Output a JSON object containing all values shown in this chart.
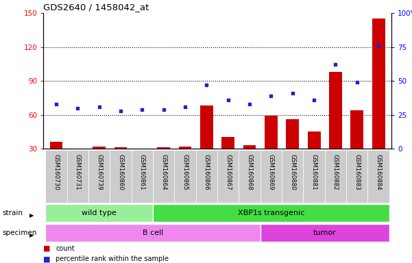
{
  "title": "GDS2640 / 1458042_at",
  "samples": [
    "GSM160730",
    "GSM160731",
    "GSM160739",
    "GSM160860",
    "GSM160861",
    "GSM160864",
    "GSM160865",
    "GSM160866",
    "GSM160867",
    "GSM160868",
    "GSM160869",
    "GSM160880",
    "GSM160881",
    "GSM160882",
    "GSM160883",
    "GSM160884"
  ],
  "counts": [
    36,
    29,
    32,
    31,
    30,
    31,
    32,
    68,
    40,
    33,
    59,
    56,
    45,
    98,
    64,
    145
  ],
  "percentiles": [
    33,
    30,
    31,
    28,
    29,
    29,
    31,
    47,
    36,
    33,
    39,
    41,
    36,
    62,
    49,
    76
  ],
  "ylim_left": [
    30,
    150
  ],
  "ylim_right": [
    0,
    100
  ],
  "yticks_left": [
    30,
    60,
    90,
    120,
    150
  ],
  "yticks_right": [
    0,
    25,
    50,
    75,
    100
  ],
  "bar_color": "#cc0000",
  "dot_color": "#2222cc",
  "strain_groups": [
    {
      "label": "wild type",
      "start": 0,
      "end": 4,
      "color": "#99ee99"
    },
    {
      "label": "XBP1s transgenic",
      "start": 5,
      "end": 15,
      "color": "#44dd44"
    }
  ],
  "specimen_groups": [
    {
      "label": "B cell",
      "start": 0,
      "end": 9,
      "color": "#ee88ee"
    },
    {
      "label": "tumor",
      "start": 10,
      "end": 15,
      "color": "#dd44dd"
    }
  ],
  "tick_bg": "#cccccc",
  "legend_items": [
    {
      "color": "#cc0000",
      "label": "count"
    },
    {
      "color": "#2222cc",
      "label": "percentile rank within the sample"
    }
  ],
  "label_strain": "strain",
  "label_specimen": "specimen"
}
